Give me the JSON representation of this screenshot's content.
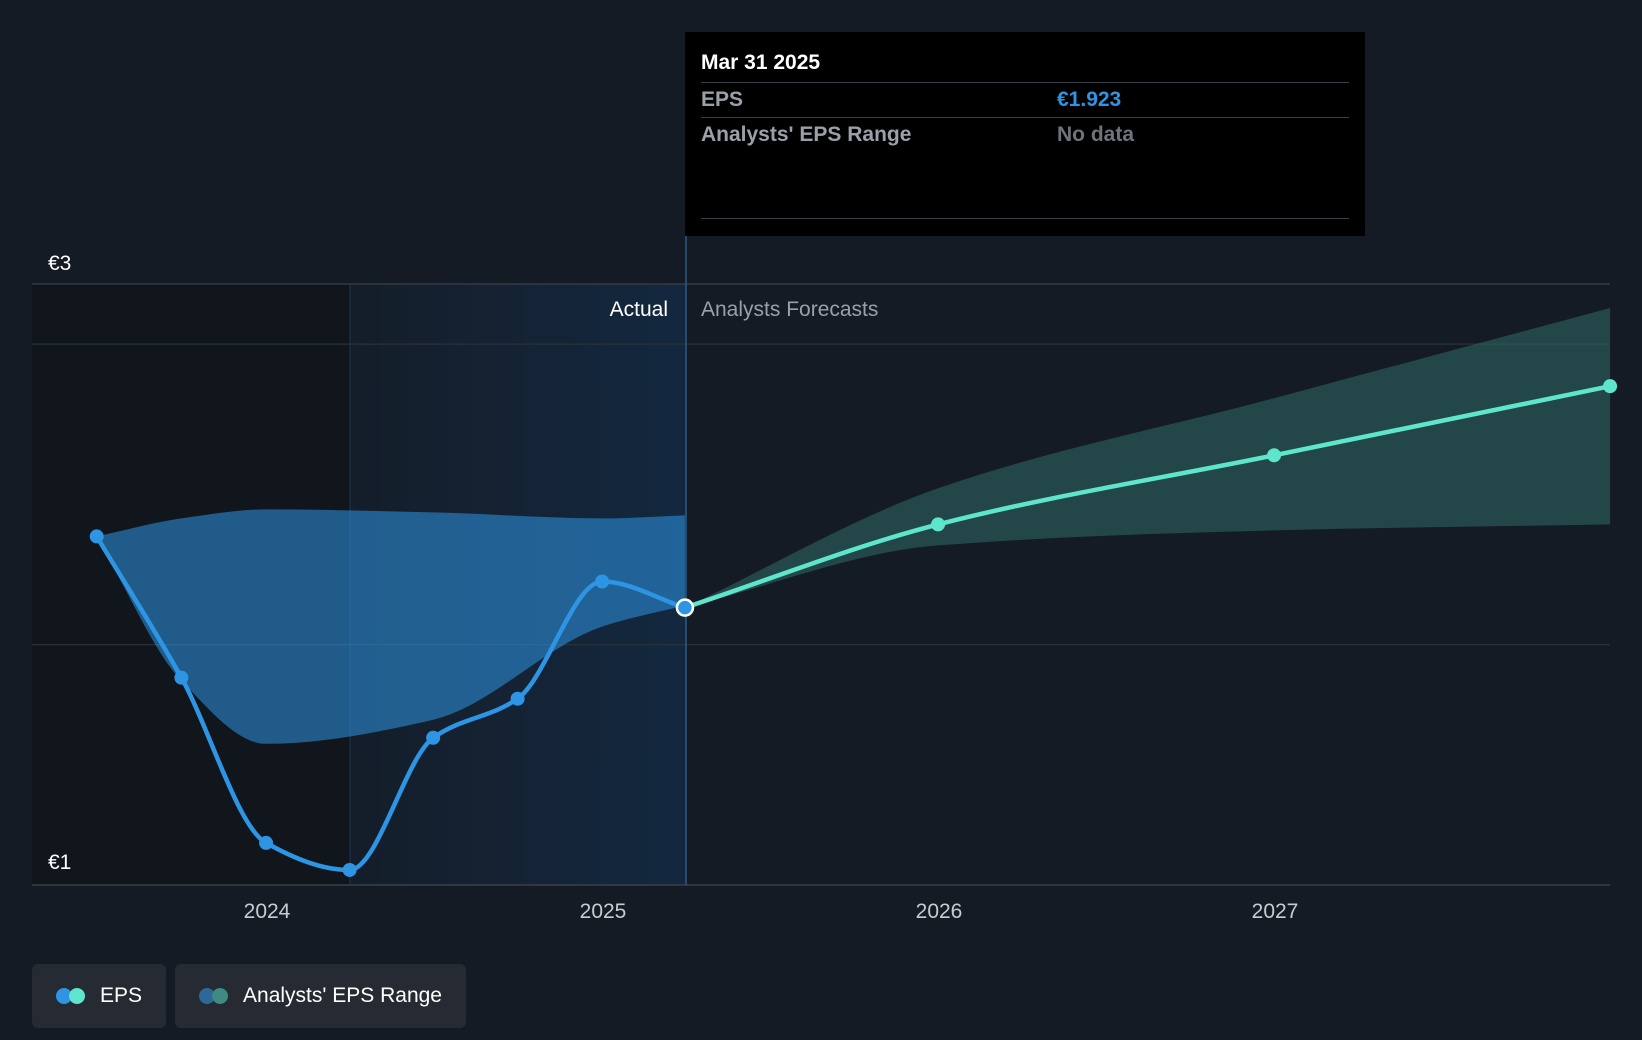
{
  "chart_data": {
    "type": "line",
    "ylim": [
      1,
      3
    ],
    "y_tick_labels": [
      {
        "value": 3,
        "label": "€3"
      },
      {
        "value": 1,
        "label": "€1"
      }
    ],
    "x_tick_labels": [
      "2024",
      "2025",
      "2026",
      "2027"
    ],
    "region_labels": {
      "actual": "Actual",
      "forecast": "Analysts Forecasts"
    },
    "grid": true,
    "series": [
      {
        "name": "EPS",
        "color": "#2d95e3",
        "points": [
          {
            "date": "2023-06-30",
            "value": 2.16
          },
          {
            "date": "2023-09-30",
            "value": 1.69
          },
          {
            "date": "2023-12-31",
            "value": 1.14
          },
          {
            "date": "2024-03-31",
            "value": 1.05
          },
          {
            "date": "2024-06-30",
            "value": 1.49
          },
          {
            "date": "2024-09-30",
            "value": 1.62
          },
          {
            "date": "2024-12-31",
            "value": 2.01
          },
          {
            "date": "2025-03-31",
            "value": 1.923
          }
        ]
      },
      {
        "name": "EPS",
        "color": "#5ee6cc",
        "forecast": true,
        "points": [
          {
            "date": "2025-03-31",
            "value": 1.923
          },
          {
            "date": "2025-12-31",
            "value": 2.2
          },
          {
            "date": "2026-12-31",
            "value": 2.43
          },
          {
            "date": "2027-12-31",
            "value": 2.66
          }
        ]
      }
    ],
    "ranges": [
      {
        "name": "Analysts' EPS Range",
        "color": "#2d95e3",
        "points": [
          {
            "date": "2023-06-30",
            "low": 2.16,
            "high": 2.16
          },
          {
            "date": "2023-09-30",
            "low": 1.68,
            "high": 2.22
          },
          {
            "date": "2023-12-31",
            "low": 1.47,
            "high": 2.25
          },
          {
            "date": "2024-06-30",
            "low": 1.55,
            "high": 2.24
          },
          {
            "date": "2024-12-31",
            "low": 1.86,
            "high": 2.22
          },
          {
            "date": "2025-03-31",
            "low": 1.93,
            "high": 2.23
          }
        ]
      },
      {
        "name": "Analysts' EPS Range",
        "color": "#2f6b66",
        "forecast": true,
        "points": [
          {
            "date": "2025-03-31",
            "low": 1.923,
            "high": 1.923
          },
          {
            "date": "2025-12-31",
            "low": 2.13,
            "high": 2.32
          },
          {
            "date": "2026-12-31",
            "low": 2.18,
            "high": 2.62
          },
          {
            "date": "2027-12-31",
            "low": 2.2,
            "high": 2.92
          }
        ]
      }
    ]
  },
  "tooltip": {
    "date": "Mar 31 2025",
    "eps_label": "EPS",
    "eps_value": "€1.923",
    "range_label": "Analysts' EPS Range",
    "range_value": "No data"
  },
  "legend": [
    {
      "label": "EPS",
      "colors": [
        "#2d95e3",
        "#5ee6cc"
      ]
    },
    {
      "label": "Analysts' EPS Range",
      "colors": [
        "#2c6898",
        "#3f8a82"
      ]
    }
  ]
}
